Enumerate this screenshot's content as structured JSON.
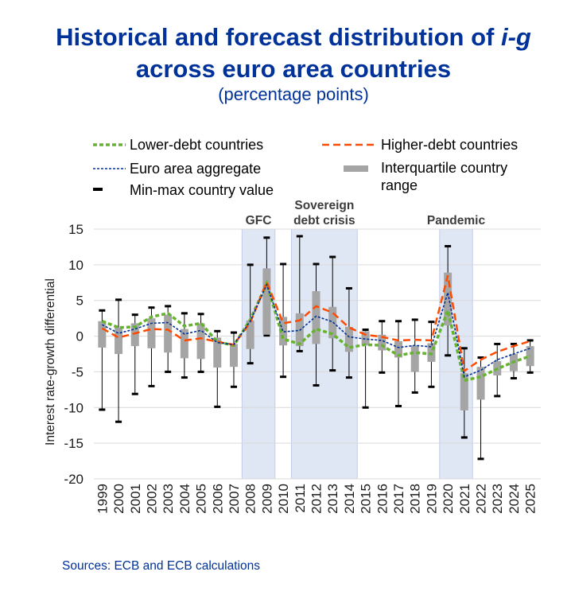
{
  "chart_data": {
    "type": "line",
    "title": {
      "line1": "Historical and forecast distribution of",
      "line1_italic": "i-g",
      "line2": "across euro area countries"
    },
    "subtitle": "(percentage points)",
    "xlabel": "",
    "ylabel": "Interest rate-growth differential",
    "ylim": [
      -20,
      15
    ],
    "y_ticks": [
      15,
      10,
      5,
      0,
      -5,
      -10,
      -15,
      -20
    ],
    "grid": "horizontal",
    "legend_position": "top",
    "categories": [
      "1999",
      "2000",
      "2001",
      "2002",
      "2003",
      "2004",
      "2005",
      "2006",
      "2007",
      "2008",
      "2009",
      "2010",
      "2011",
      "2012",
      "2013",
      "2014",
      "2015",
      "2016",
      "2017",
      "2018",
      "2019",
      "2020",
      "2021",
      "2022",
      "2023",
      "2024",
      "2025"
    ],
    "series": [
      {
        "name": "Lower-debt countries",
        "line_style": "dashed",
        "color": "#66b32e",
        "values": [
          2.1,
          1.2,
          1.3,
          2.7,
          3.2,
          1.4,
          1.8,
          -0.8,
          -1.3,
          2.3,
          7.4,
          -0.4,
          -1.1,
          1.0,
          0.3,
          -1.6,
          -1.2,
          -1.3,
          -2.7,
          -2.3,
          -2.5,
          3.6,
          -6.2,
          -5.7,
          -4.6,
          -3.6,
          -2.8
        ]
      },
      {
        "name": "Higher-debt countries",
        "line_style": "dashed",
        "color": "#ff4b00",
        "values": [
          1.1,
          -0.2,
          0.4,
          1.0,
          0.9,
          -0.6,
          -0.3,
          -0.8,
          -1.2,
          1.9,
          7.6,
          1.8,
          2.2,
          4.2,
          3.3,
          1.2,
          0.2,
          -0.1,
          -0.6,
          -0.5,
          -0.6,
          8.5,
          -4.9,
          -3.3,
          -2.2,
          -1.4,
          -0.7
        ]
      },
      {
        "name": "Euro area aggregate",
        "line_style": "dotted",
        "color": "#003299",
        "values": [
          1.6,
          0.4,
          1.0,
          1.8,
          1.9,
          0.3,
          0.8,
          -0.9,
          -1.2,
          2.1,
          7.2,
          0.6,
          0.8,
          2.8,
          2.0,
          -0.1,
          -0.4,
          -0.6,
          -1.6,
          -1.3,
          -1.5,
          6.1,
          -5.7,
          -4.8,
          -3.3,
          -2.5,
          -1.7
        ]
      }
    ],
    "interquartile_range": {
      "name_lines": [
        "Interquartile country",
        "range"
      ],
      "color": "#a5a5a5",
      "low": [
        -1.6,
        -2.5,
        -1.4,
        -1.7,
        -2.3,
        -3.1,
        -3.2,
        -4.4,
        -4.3,
        -1.8,
        0.2,
        -1.3,
        -1.4,
        -1.1,
        -0.3,
        -2.2,
        -1.3,
        -2.0,
        -3.0,
        -5.0,
        -3.6,
        1.5,
        -10.4,
        -8.9,
        -5.5,
        -4.9,
        -4.2
      ],
      "high": [
        2.1,
        1.2,
        1.8,
        2.5,
        3.0,
        1.0,
        1.8,
        -0.2,
        -1.1,
        2.2,
        9.5,
        2.7,
        3.2,
        6.3,
        4.1,
        1.3,
        0.7,
        0.2,
        -0.7,
        -1.3,
        -1.0,
        8.9,
        -5.2,
        -4.3,
        -3.5,
        -2.5,
        -1.4
      ]
    },
    "min_max": {
      "name": "Min-max country value",
      "color": "#000000",
      "min": [
        -10.3,
        -12.0,
        -8.1,
        -7.0,
        -5.0,
        -5.8,
        -5.0,
        -9.9,
        -7.1,
        -3.8,
        0.1,
        -5.7,
        -2.1,
        -6.9,
        -4.8,
        -5.8,
        -10.0,
        -5.1,
        -9.8,
        -7.9,
        -7.1,
        -2.7,
        -14.2,
        -17.2,
        -8.4,
        -5.9,
        -5.1
      ],
      "max": [
        3.6,
        5.1,
        3.0,
        4.0,
        4.2,
        3.2,
        3.1,
        0.7,
        0.5,
        10.0,
        13.8,
        10.1,
        14.0,
        10.1,
        11.1,
        6.7,
        0.9,
        2.1,
        2.1,
        2.3,
        2.0,
        12.6,
        -1.7,
        -3.0,
        -1.1,
        -1.1,
        -0.6
      ]
    },
    "shaded_periods": [
      {
        "label_lines": [
          "GFC"
        ],
        "start": 2008,
        "end": 2009
      },
      {
        "label_lines": [
          "Sovereign",
          "debt crisis"
        ],
        "start": 2011,
        "end": 2014
      },
      {
        "label_lines": [
          "Pandemic"
        ],
        "start": 2020,
        "end": 2021
      }
    ]
  },
  "source": "Sources: ECB and ECB calculations",
  "colors": {
    "title": "#003299",
    "source": "#003299",
    "band": "#dfe6f4",
    "band_border": "#c3cde8",
    "band_label": "#3c3c3c",
    "grid": "#d9d9d9"
  }
}
